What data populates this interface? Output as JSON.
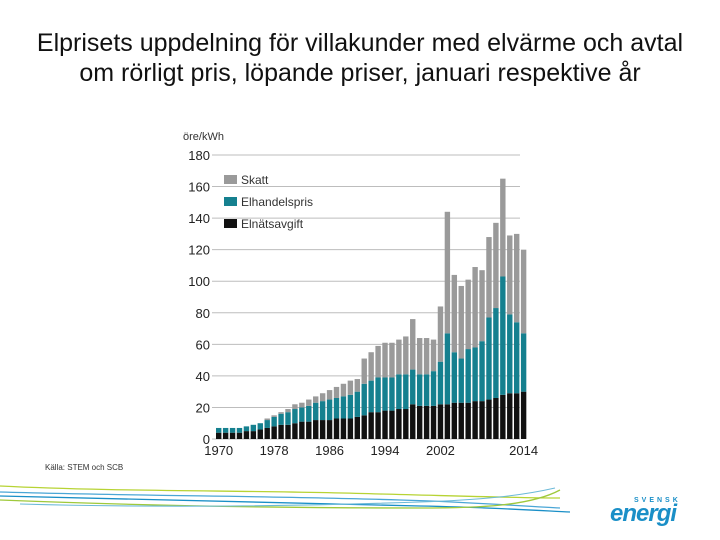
{
  "title": {
    "line1": "Elprisets uppdelning för villakunder med elvärme och avtal",
    "line2": "om rörligt pris, löpande priser, januari respektive år"
  },
  "source": "Källa: STEM och SCB",
  "logo": {
    "top_text": "SVENSK",
    "main_text": "energi"
  },
  "colors": {
    "skatt": "#9a9a9a",
    "elhandel": "#15808f",
    "elnat": "#111111",
    "grid": "#bdbdbd"
  },
  "chart_data": {
    "type": "bar",
    "stacked": true,
    "title": "",
    "ylabel": "öre/kWh",
    "xlabel": "",
    "ylim": [
      0,
      180
    ],
    "yticks": [
      0,
      20,
      40,
      60,
      80,
      100,
      120,
      140,
      160,
      180
    ],
    "xtick_labels": [
      "1970",
      "1978",
      "1986",
      "1994",
      "2002",
      "2014"
    ],
    "legend_position": "top-left",
    "categories": [
      1970,
      1971,
      1972,
      1973,
      1974,
      1975,
      1976,
      1977,
      1978,
      1979,
      1980,
      1981,
      1982,
      1983,
      1984,
      1985,
      1986,
      1987,
      1988,
      1989,
      1990,
      1991,
      1992,
      1993,
      1994,
      1995,
      1996,
      1997,
      1998,
      1999,
      2000,
      2001,
      2002,
      2003,
      2004,
      2005,
      2006,
      2007,
      2008,
      2009,
      2010,
      2011,
      2012,
      2013,
      2014
    ],
    "series": [
      {
        "name": "Elnätsavgift",
        "values": [
          4,
          4,
          4,
          4,
          5,
          5,
          6,
          7,
          8,
          9,
          9,
          10,
          11,
          11,
          12,
          12,
          12,
          13,
          13,
          13,
          14,
          15,
          17,
          17,
          18,
          18,
          19,
          19,
          22,
          21,
          21,
          21,
          22,
          22,
          23,
          23,
          23,
          24,
          24,
          25,
          26,
          28,
          29,
          29,
          30
        ]
      },
      {
        "name": "Elhandelspris",
        "values": [
          3,
          3,
          3,
          3,
          3,
          4,
          4,
          5,
          6,
          7,
          8,
          9,
          9,
          10,
          11,
          12,
          13,
          13,
          14,
          15,
          16,
          20,
          20,
          22,
          21,
          21,
          22,
          22,
          22,
          20,
          20,
          22,
          27,
          45,
          32,
          28,
          34,
          34,
          38,
          52,
          57,
          75,
          50,
          45,
          37
        ]
      },
      {
        "name": "Skatt",
        "values": [
          0,
          0,
          0,
          0,
          0,
          0,
          0,
          1,
          1,
          1,
          2,
          3,
          3,
          4,
          4,
          5,
          6,
          7,
          8,
          9,
          8,
          16,
          18,
          20,
          22,
          22,
          22,
          24,
          32,
          23,
          23,
          20,
          35,
          77,
          49,
          46,
          44,
          51,
          45,
          51,
          54,
          62,
          50,
          56,
          53
        ]
      }
    ]
  }
}
